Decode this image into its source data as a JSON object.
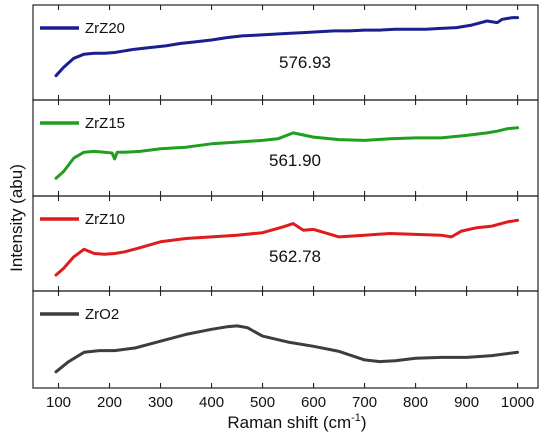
{
  "chart_data": {
    "type": "line",
    "layout": "stacked-panels",
    "xlabel": "Raman shift (cm",
    "xlabel_sup": "-1",
    "xlabel_close": ")",
    "ylabel": "Intensity (abu)",
    "xlim": [
      50,
      1040
    ],
    "xticks": [
      100,
      200,
      300,
      400,
      500,
      600,
      700,
      800,
      900,
      1000
    ],
    "ylim": [
      0,
      1
    ],
    "y_tick_labels": "none",
    "legend_placement": "top-left of each panel",
    "grid": false,
    "series": [
      {
        "name": "ZrZ20",
        "color": "#1a1f8f",
        "annotation": "576.93",
        "x": [
          95,
          110,
          130,
          150,
          170,
          190,
          210,
          230,
          250,
          280,
          310,
          340,
          370,
          400,
          430,
          460,
          490,
          520,
          550,
          580,
          610,
          640,
          670,
          700,
          730,
          760,
          790,
          820,
          850,
          880,
          910,
          940,
          960,
          970,
          990,
          1000
        ],
        "y": [
          0.22,
          0.32,
          0.43,
          0.48,
          0.49,
          0.49,
          0.5,
          0.52,
          0.54,
          0.56,
          0.58,
          0.61,
          0.63,
          0.65,
          0.68,
          0.7,
          0.71,
          0.72,
          0.73,
          0.74,
          0.75,
          0.76,
          0.76,
          0.77,
          0.77,
          0.78,
          0.78,
          0.78,
          0.79,
          0.8,
          0.83,
          0.88,
          0.86,
          0.9,
          0.92,
          0.92
        ]
      },
      {
        "name": "ZrZ15",
        "color": "#1f9e1f",
        "annotation": "561.90",
        "x": [
          95,
          110,
          130,
          150,
          170,
          190,
          205,
          210,
          215,
          230,
          260,
          300,
          350,
          400,
          450,
          500,
          530,
          560,
          600,
          650,
          700,
          750,
          800,
          850,
          900,
          940,
          960,
          980,
          1000
        ],
        "y": [
          0.14,
          0.22,
          0.38,
          0.45,
          0.46,
          0.45,
          0.44,
          0.37,
          0.45,
          0.45,
          0.46,
          0.49,
          0.51,
          0.55,
          0.57,
          0.59,
          0.61,
          0.68,
          0.63,
          0.6,
          0.59,
          0.61,
          0.62,
          0.62,
          0.65,
          0.68,
          0.7,
          0.73,
          0.74
        ]
      },
      {
        "name": "ZrZ10",
        "color": "#e01b1b",
        "annotation": "562.78",
        "x": [
          95,
          110,
          130,
          150,
          170,
          190,
          210,
          230,
          260,
          300,
          350,
          400,
          450,
          500,
          540,
          560,
          580,
          600,
          650,
          700,
          750,
          800,
          850,
          870,
          890,
          920,
          950,
          980,
          1000
        ],
        "y": [
          0.12,
          0.2,
          0.34,
          0.43,
          0.38,
          0.37,
          0.38,
          0.4,
          0.45,
          0.52,
          0.56,
          0.58,
          0.6,
          0.63,
          0.7,
          0.74,
          0.66,
          0.67,
          0.58,
          0.6,
          0.62,
          0.61,
          0.6,
          0.58,
          0.65,
          0.69,
          0.71,
          0.76,
          0.78
        ]
      },
      {
        "name": "ZrO2",
        "color": "#3d3d3d",
        "annotation": "",
        "x": [
          95,
          120,
          150,
          180,
          210,
          250,
          300,
          350,
          400,
          430,
          450,
          470,
          500,
          550,
          600,
          650,
          700,
          730,
          760,
          800,
          850,
          900,
          950,
          1000
        ],
        "y": [
          0.12,
          0.24,
          0.35,
          0.37,
          0.37,
          0.4,
          0.48,
          0.56,
          0.62,
          0.65,
          0.66,
          0.64,
          0.54,
          0.47,
          0.42,
          0.36,
          0.26,
          0.24,
          0.25,
          0.28,
          0.29,
          0.29,
          0.31,
          0.35
        ]
      }
    ]
  }
}
